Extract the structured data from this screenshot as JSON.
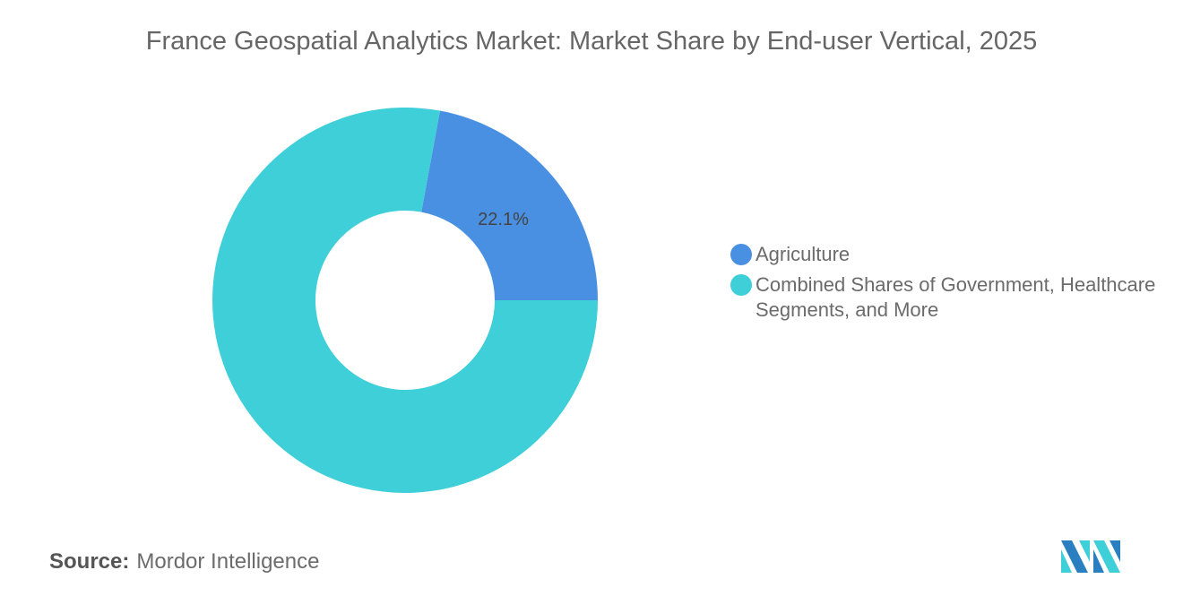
{
  "title": "France Geospatial Analytics Market: Market Share by End-user Vertical, 2025",
  "chart_data": {
    "type": "pie",
    "donut": true,
    "title": "France Geospatial Analytics Market: Market Share by End-user Vertical, 2025",
    "categories": [
      "Agriculture",
      "Combined Shares of Government, Healthcare Segments, and More"
    ],
    "values": [
      22.1,
      77.9
    ],
    "data_labels": [
      "22.1%",
      ""
    ],
    "colors": [
      "#4a90e2",
      "#3ecfd9"
    ],
    "legend_position": "right"
  },
  "source": {
    "label": "Source:",
    "value": "Mordor Intelligence"
  },
  "logo": {
    "colors": [
      "#2a7fc1",
      "#3ecfd9"
    ]
  }
}
